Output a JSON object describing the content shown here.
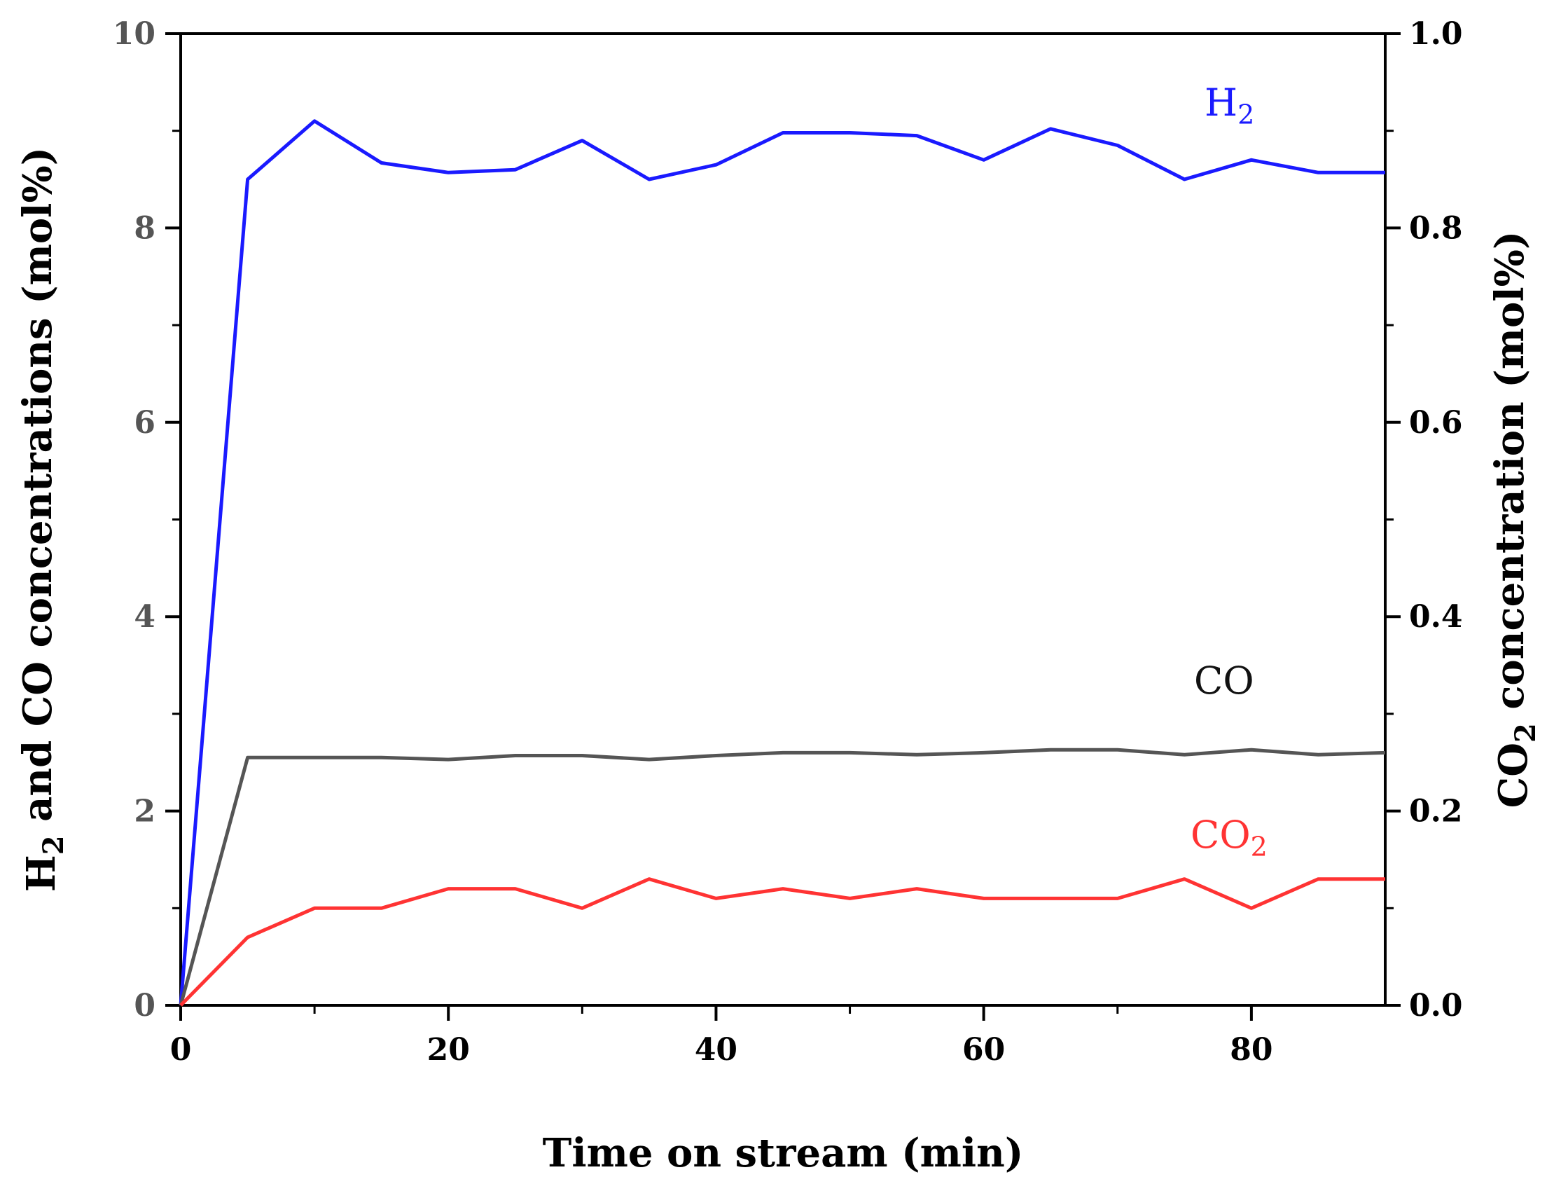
{
  "chart_data": {
    "type": "line",
    "xlabel": "Time on stream (min)",
    "ylabel_left": {
      "pre": "H",
      "sub": "2",
      "post": " and CO concentrations (mol%)"
    },
    "ylabel_right": {
      "pre": "CO",
      "sub": "2",
      "post": " concentration (mol%)"
    },
    "xlim": [
      0,
      90
    ],
    "ylim_left": [
      0,
      10
    ],
    "ylim_right": [
      0,
      1.0
    ],
    "x_ticks": [
      0,
      20,
      40,
      60,
      80
    ],
    "y_left_ticks": [
      0,
      2,
      4,
      6,
      8,
      10
    ],
    "y_right_ticks": [
      "0.0",
      "0.2",
      "0.4",
      "0.6",
      "0.8",
      "1.0"
    ],
    "grid": false,
    "series": [
      {
        "id": "h2",
        "label": {
          "pre": "H",
          "sub": "2"
        },
        "axis": "left",
        "color": "#1a1aff",
        "x": [
          0,
          5,
          10,
          15,
          20,
          25,
          30,
          35,
          40,
          45,
          50,
          55,
          60,
          65,
          70,
          75,
          80,
          85,
          90
        ],
        "y": [
          0,
          8.5,
          9.1,
          8.67,
          8.57,
          8.6,
          8.9,
          8.5,
          8.65,
          8.98,
          8.98,
          8.95,
          8.7,
          9.02,
          8.85,
          8.5,
          8.7,
          8.57,
          8.57
        ]
      },
      {
        "id": "co",
        "label": {
          "pre": "CO",
          "sub": ""
        },
        "axis": "left",
        "color": "#555555",
        "x": [
          0,
          5,
          10,
          15,
          20,
          25,
          30,
          35,
          40,
          45,
          50,
          55,
          60,
          65,
          70,
          75,
          80,
          85,
          90
        ],
        "y": [
          0,
          2.55,
          2.55,
          2.55,
          2.53,
          2.57,
          2.57,
          2.53,
          2.57,
          2.6,
          2.6,
          2.58,
          2.6,
          2.63,
          2.63,
          2.58,
          2.63,
          2.58,
          2.6
        ]
      },
      {
        "id": "co2",
        "label": {
          "pre": "CO",
          "sub": "2"
        },
        "axis": "right",
        "color": "#ff3333",
        "x": [
          0,
          5,
          10,
          15,
          20,
          25,
          30,
          35,
          40,
          45,
          50,
          55,
          60,
          65,
          70,
          75,
          80,
          85,
          90
        ],
        "y": [
          0,
          0.07,
          0.1,
          0.1,
          0.12,
          0.12,
          0.1,
          0.13,
          0.11,
          0.12,
          0.11,
          0.12,
          0.11,
          0.11,
          0.11,
          0.13,
          0.1,
          0.13,
          0.13
        ]
      }
    ],
    "colors": {
      "left_axis_ticks": "#555555",
      "right_axis_ticks": "#000000",
      "axes": "#000000"
    }
  }
}
